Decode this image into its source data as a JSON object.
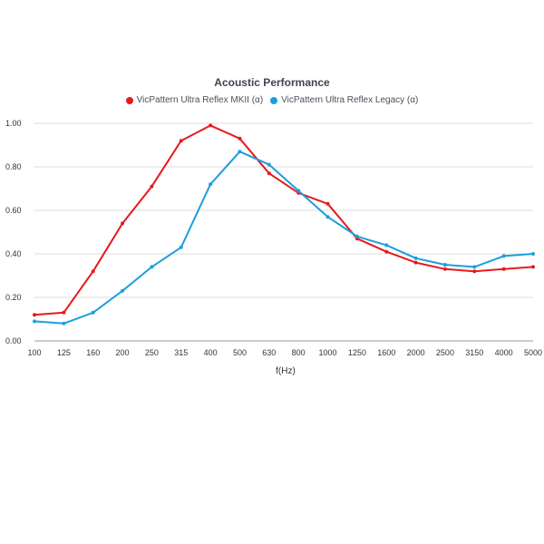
{
  "chart_data": {
    "type": "line",
    "title": "Acoustic Performance",
    "xlabel": "f(Hz)",
    "ylabel": "",
    "categories": [
      "100",
      "125",
      "160",
      "200",
      "250",
      "315",
      "400",
      "500",
      "630",
      "800",
      "1000",
      "1250",
      "1600",
      "2000",
      "2500",
      "3150",
      "4000",
      "5000"
    ],
    "ylim": [
      0,
      1.0
    ],
    "yticks": [
      "0.00",
      "0.20",
      "0.40",
      "0.60",
      "0.80",
      "1.00"
    ],
    "grid": true,
    "legend_position": "top-center",
    "series": [
      {
        "name": "VicPattern Ultra Reflex MKII (α)",
        "color": "#e8191c",
        "values": [
          0.12,
          0.13,
          0.32,
          0.54,
          0.71,
          0.92,
          0.99,
          0.93,
          0.77,
          0.68,
          0.63,
          0.47,
          0.41,
          0.36,
          0.33,
          0.32,
          0.33,
          0.34
        ]
      },
      {
        "name": "VicPattern Ultra Reflex Legacy (α)",
        "color": "#1a9fde",
        "values": [
          0.09,
          0.08,
          0.13,
          0.23,
          0.34,
          0.43,
          0.72,
          0.87,
          0.81,
          0.69,
          0.57,
          0.48,
          0.44,
          0.38,
          0.35,
          0.34,
          0.39,
          0.4
        ]
      }
    ]
  }
}
